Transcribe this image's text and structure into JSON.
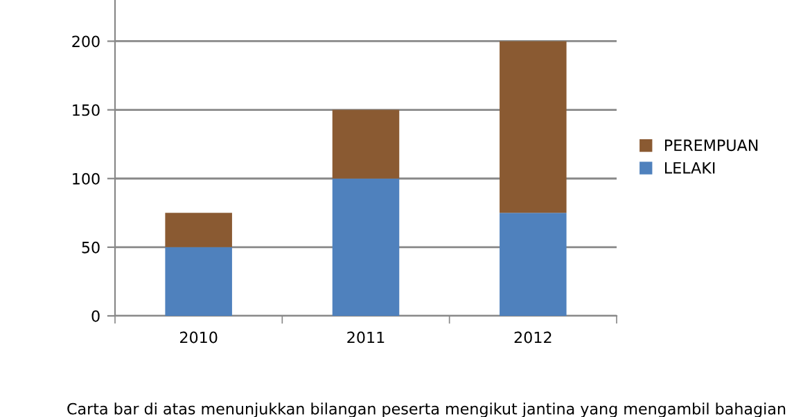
{
  "chart_data": {
    "type": "bar",
    "stacked": true,
    "categories": [
      "2010",
      "2011",
      "2012"
    ],
    "series": [
      {
        "name": "LELAKI",
        "color": "#4f81bd",
        "values": [
          50,
          100,
          75
        ]
      },
      {
        "name": "PEREMPUAN",
        "color": "#8a5a32",
        "values": [
          25,
          50,
          125
        ]
      }
    ],
    "ylim": [
      0,
      230
    ],
    "yticks": [
      0,
      50,
      100,
      150,
      200
    ],
    "grid": "y",
    "legend": "right",
    "annotations": [
      "Carta bar di atas menunjukkan bilangan peserta mengikut jantina yang mengambil bahagian"
    ]
  }
}
